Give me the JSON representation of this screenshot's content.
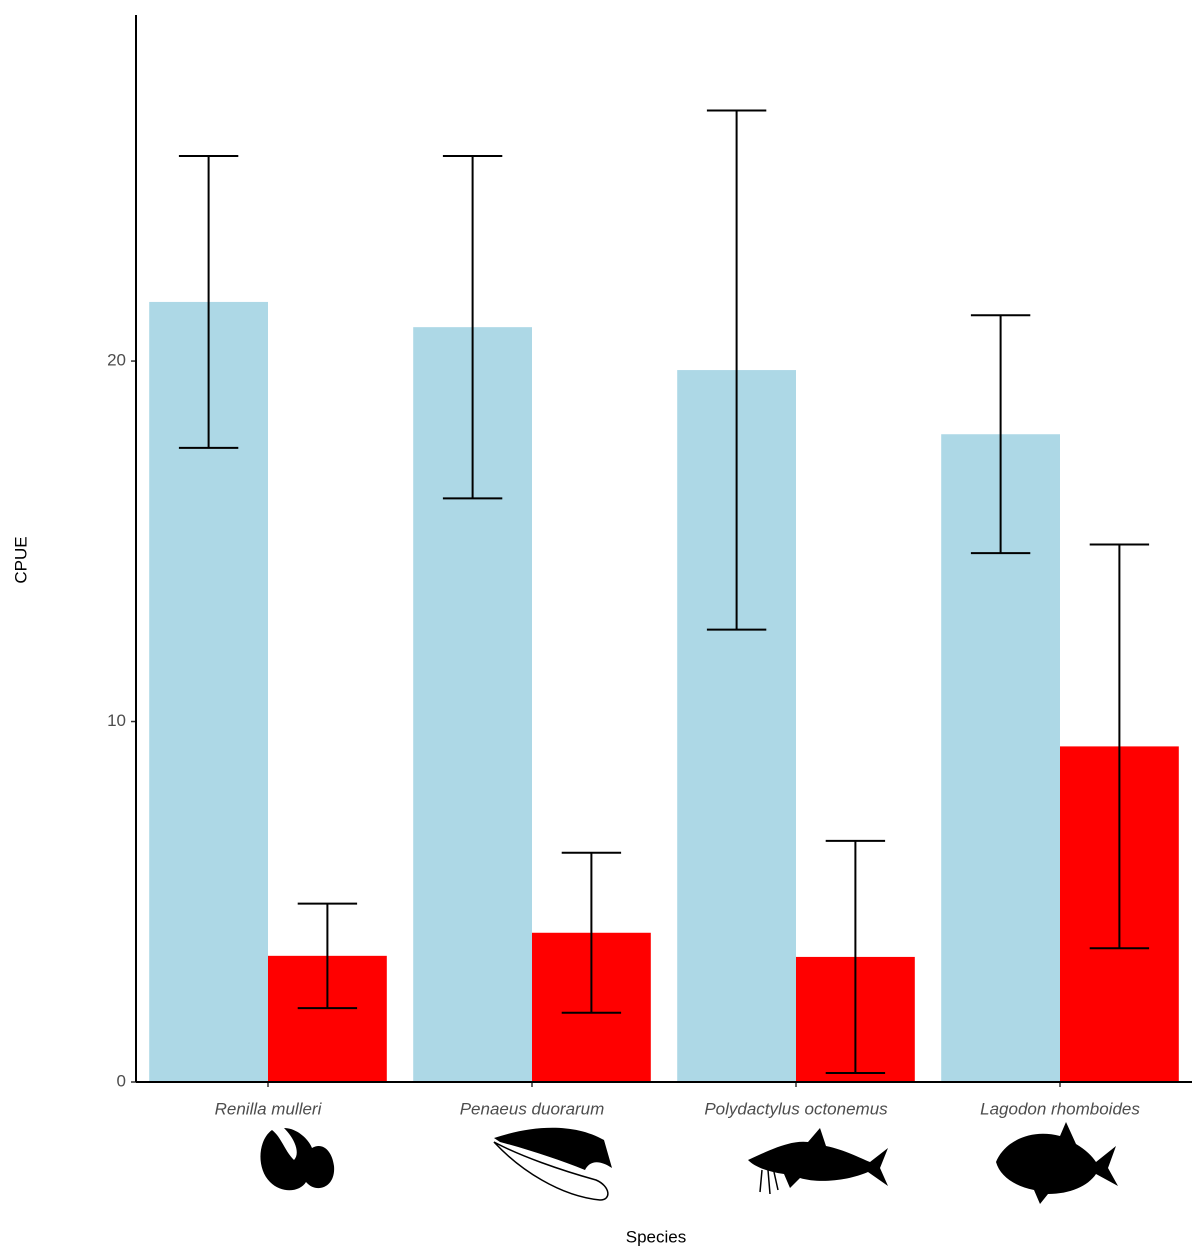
{
  "chart_data": {
    "type": "bar",
    "x_label": "Species",
    "y_label": "CPUE",
    "categories": [
      "Renilla mulleri",
      "Penaeus duorarum",
      "Polydactylus octonemus",
      "Lagodon rhomboides"
    ],
    "series": [
      {
        "color": "#add8e6",
        "values": [
          21.64,
          20.94,
          19.75,
          17.97
        ],
        "errors": [
          4.05,
          4.75,
          7.2,
          3.3
        ]
      },
      {
        "color": "#ff0000",
        "values": [
          3.5,
          4.14,
          3.47,
          9.31
        ],
        "errors": [
          1.45,
          2.22,
          3.22,
          5.6
        ]
      }
    ],
    "ylim": [
      0,
      29.6
    ],
    "yticks": [
      0,
      10,
      20
    ],
    "grid": false
  }
}
